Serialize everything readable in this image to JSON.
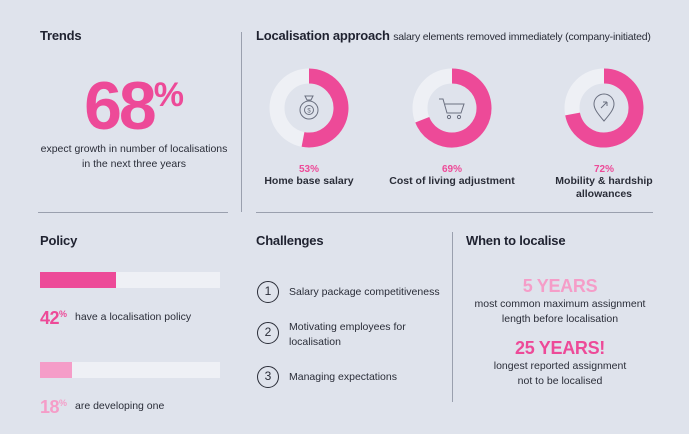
{
  "trends": {
    "title": "Trends",
    "big_number": "68",
    "big_suffix": "%",
    "desc_line1": "expect growth in number of localisations",
    "desc_line2": "in the next three years"
  },
  "localisation": {
    "title": "Localisation approach",
    "subtitle": "salary elements removed immediately (company-initiated)"
  },
  "chart_data": {
    "type": "pie",
    "title": "Localisation approach",
    "subtitle": "salary elements removed immediately (company-initiated)",
    "series": [
      {
        "label_line1": "Home base salary",
        "label_line2": "",
        "value": 53,
        "value_label": "53%",
        "icon": "money-bag-icon"
      },
      {
        "label_line1": "Cost of living adjustment",
        "label_line2": "",
        "value": 69,
        "value_label": "69%",
        "icon": "shopping-cart-icon"
      },
      {
        "label_line1": "Mobility & hardship",
        "label_line2": "allowances",
        "value": 72,
        "value_label": "72%",
        "icon": "location-pin-icon"
      }
    ],
    "colors": {
      "filled": "#ed4a98",
      "empty": "#eef0f5"
    }
  },
  "policy": {
    "title": "Policy",
    "bars": [
      {
        "value": 42,
        "value_text": "42",
        "suffix": "%",
        "label": "have a localisation policy",
        "color": "#ed4a98"
      },
      {
        "value": 18,
        "value_text": "18",
        "suffix": "%",
        "label": "are developing one",
        "color": "#f59dc8"
      }
    ]
  },
  "challenges": {
    "title": "Challenges",
    "items": [
      {
        "num": "1",
        "line1": "Salary package competitiveness",
        "line2": ""
      },
      {
        "num": "2",
        "line1": "Motivating employees for",
        "line2": "localisation"
      },
      {
        "num": "3",
        "line1": "Managing expectations",
        "line2": ""
      }
    ]
  },
  "when": {
    "title": "When to localise",
    "stat1": {
      "value": "5 YEARS",
      "line1": "most common maximum assignment",
      "line2": "length before localisation",
      "color": "#f59dc8"
    },
    "stat2": {
      "value": "25 YEARS!",
      "line1": "longest reported assignment",
      "line2": "not to be localised",
      "color": "#ed4a98"
    }
  }
}
